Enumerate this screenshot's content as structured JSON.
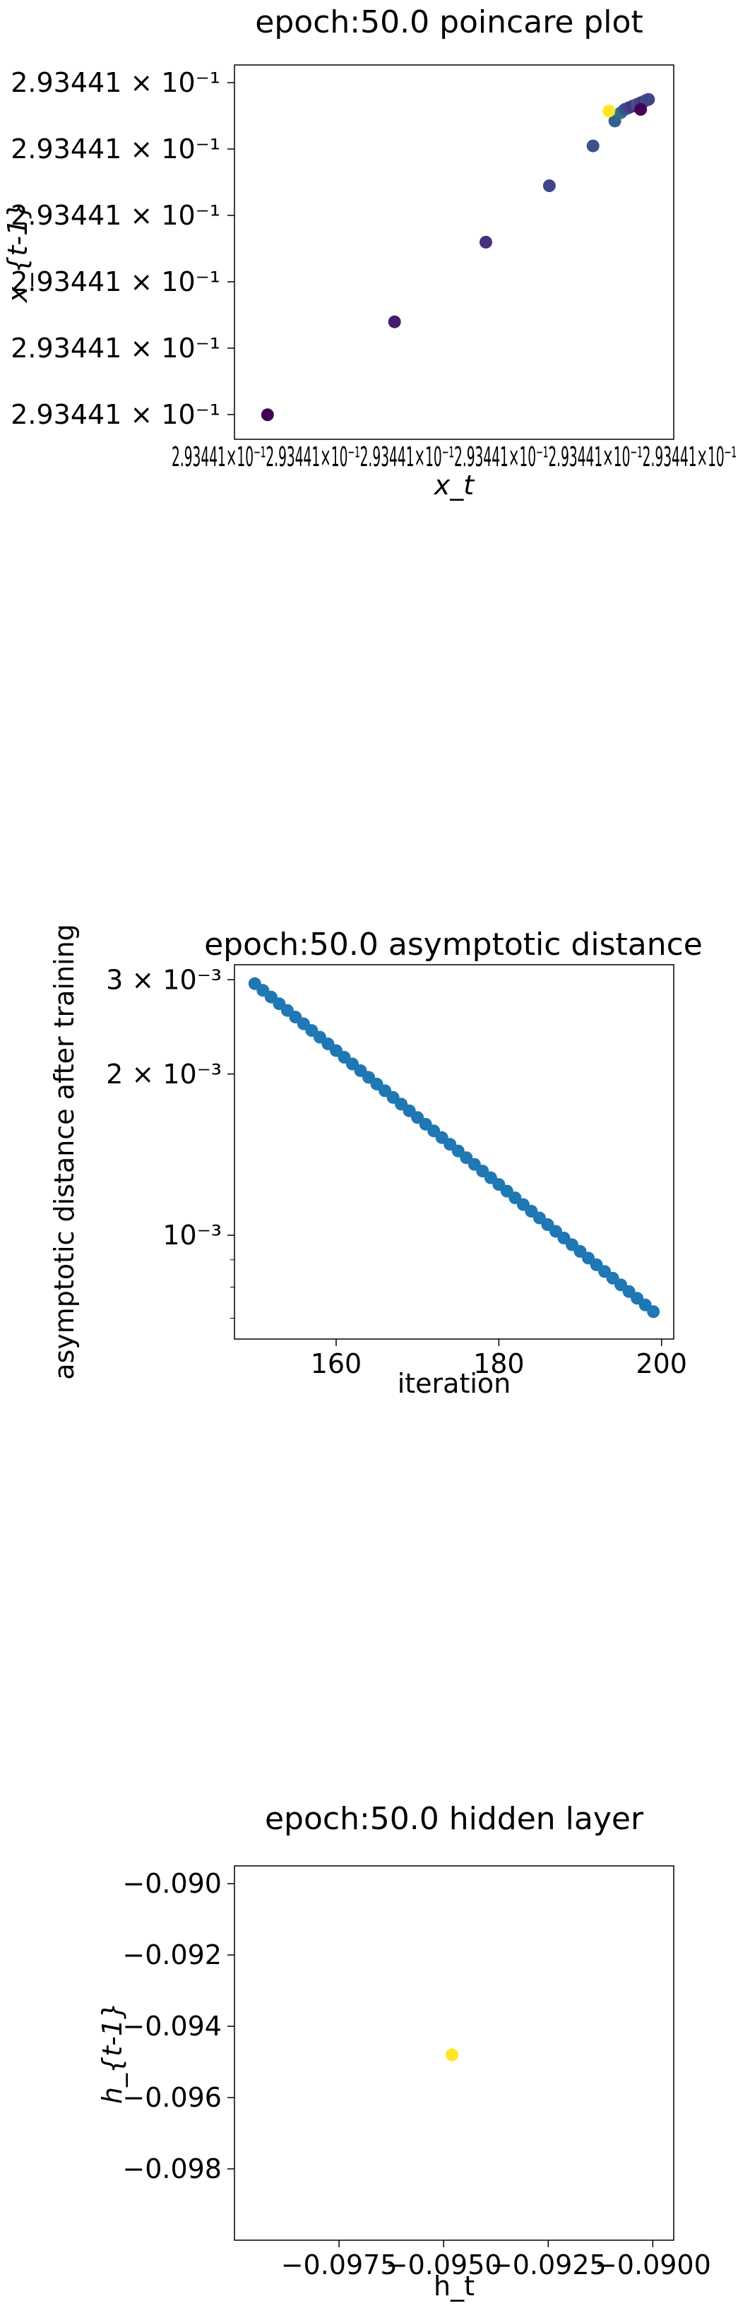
{
  "chart_data": [
    {
      "type": "scatter",
      "title": "epoch:50.0 poincare plot",
      "xlabel": "x_t",
      "ylabel": "x_{t-1}",
      "xscale": "log",
      "yscale": "log",
      "x_ticks_text": "2.93441×10⁻¹2.93441×10⁻¹2.93441×10⁻¹2.93441×10⁻¹2.93441×10⁻¹2.93441×10⁻¹",
      "y_ticks": [
        "2.93441 × 10⁻¹",
        "2.93441 × 10⁻¹",
        "2.93441 × 10⁻¹",
        "2.93441 × 10⁻¹",
        "2.93441 × 10⁻¹",
        "2.93441 × 10⁻¹"
      ],
      "x_range_rel": [
        0.0,
        1.0
      ],
      "points_rel": [
        [
          0.03,
          0.01
        ],
        [
          0.35,
          0.29
        ],
        [
          0.58,
          0.53
        ],
        [
          0.74,
          0.7
        ],
        [
          0.85,
          0.82
        ],
        [
          0.905,
          0.895
        ],
        [
          0.92,
          0.92
        ],
        [
          0.93,
          0.93
        ],
        [
          0.94,
          0.935
        ],
        [
          0.95,
          0.94
        ],
        [
          0.96,
          0.945
        ],
        [
          0.97,
          0.95
        ],
        [
          0.98,
          0.955
        ],
        [
          0.985,
          0.958
        ],
        [
          0.99,
          0.96
        ],
        [
          0.97,
          0.93
        ],
        [
          0.89,
          0.925
        ]
      ],
      "point_colors": [
        "#440154",
        "#481a6c",
        "#472f7d",
        "#414487",
        "#3b528b",
        "#33638d",
        "#2c728e",
        "#3b528b",
        "#414487",
        "#46337e",
        "#3b528b",
        "#414487",
        "#46327e",
        "#3b528b",
        "#414487",
        "#440154",
        "#fde725"
      ],
      "grid": false,
      "legend": "none"
    },
    {
      "type": "scatter",
      "title": "epoch:50.0 asymptotic distance",
      "xlabel": "iteration",
      "ylabel": "asymptotic distance after training",
      "yscale": "log",
      "x": [
        150,
        151,
        152,
        153,
        154,
        155,
        156,
        157,
        158,
        159,
        160,
        161,
        162,
        163,
        164,
        165,
        166,
        167,
        168,
        169,
        170,
        171,
        172,
        173,
        174,
        175,
        176,
        177,
        178,
        179,
        180,
        181,
        182,
        183,
        184,
        185,
        186,
        187,
        188,
        189,
        190,
        191,
        192,
        193,
        194,
        195,
        196,
        197,
        198,
        199
      ],
      "y_start": 0.00295,
      "y_end": 0.00072,
      "xlim": [
        147.5,
        201.5
      ],
      "ylim": [
        0.00064,
        0.0032
      ],
      "x_ticks": [
        "160",
        "180",
        "200"
      ],
      "x_tick_values": [
        160,
        180,
        200
      ],
      "y_ticks": [
        "3 × 10⁻³",
        "2 × 10⁻³",
        "10⁻³"
      ],
      "y_tick_values": [
        0.003,
        0.002,
        0.001
      ],
      "color": "#1f77b4",
      "grid": false,
      "legend": "none"
    },
    {
      "type": "scatter",
      "title": "epoch:50.0 hidden layer",
      "xlabel": "h_t",
      "ylabel": "h_{t-1}",
      "x": [
        -0.0948
      ],
      "y": [
        -0.0948
      ],
      "xlim": [
        -0.1,
        -0.0895
      ],
      "ylim": [
        -0.1,
        -0.0895
      ],
      "x_ticks": [
        "−0.0975",
        "−0.0950",
        "−0.0925",
        "−0.0900"
      ],
      "x_tick_values": [
        -0.0975,
        -0.095,
        -0.0925,
        -0.09
      ],
      "y_ticks": [
        "−0.090",
        "−0.092",
        "−0.094",
        "−0.096",
        "−0.098"
      ],
      "y_tick_values": [
        -0.09,
        -0.092,
        -0.094,
        -0.096,
        -0.098
      ],
      "color": "#fde725",
      "grid": false,
      "legend": "none"
    }
  ]
}
